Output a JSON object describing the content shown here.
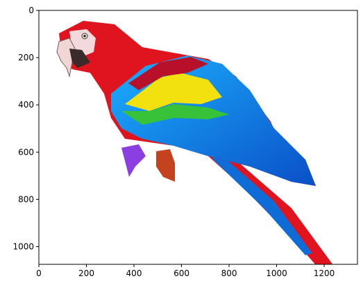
{
  "chart_data": {
    "type": "image",
    "xlim": [
      0,
      1340
    ],
    "ylim": [
      1075,
      0
    ],
    "x_ticks": [
      0,
      200,
      400,
      600,
      800,
      1000,
      1200
    ],
    "y_ticks": [
      0,
      200,
      400,
      600,
      800,
      1000
    ],
    "x_tick_labels": [
      "0",
      "200",
      "400",
      "600",
      "800",
      "1000",
      "1200"
    ],
    "y_tick_labels": [
      "0",
      "200",
      "400",
      "600",
      "800",
      "1000"
    ],
    "grid": false,
    "subject": "scarlet macaw"
  },
  "colors": {
    "red": "#e0141e",
    "blue": "#1a8fe0",
    "yellow": "#f2e10f",
    "green": "#37c23a",
    "beak": "#f1d6d6"
  }
}
